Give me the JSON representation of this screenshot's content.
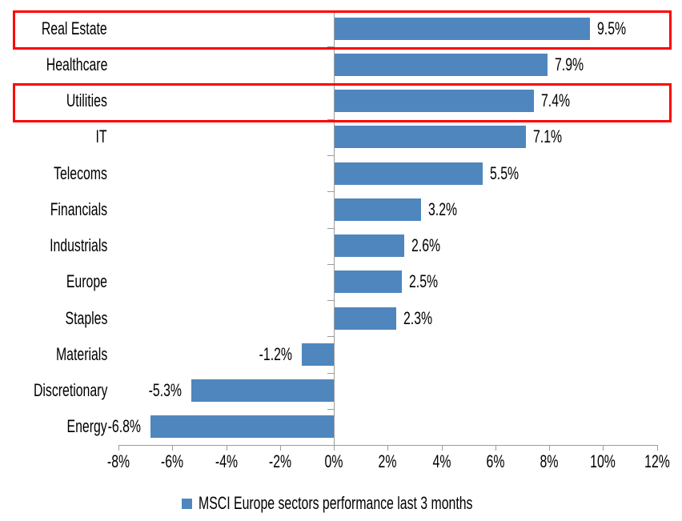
{
  "chart_data": {
    "type": "bar",
    "orientation": "horizontal",
    "title": "",
    "categories": [
      "Real Estate",
      "Healthcare",
      "Utilities",
      "IT",
      "Telecoms",
      "Financials",
      "Industrials",
      "Europe",
      "Staples",
      "Materials",
      "Discretionary",
      "Energy"
    ],
    "values": [
      9.5,
      7.9,
      7.4,
      7.1,
      5.5,
      3.2,
      2.6,
      2.5,
      2.3,
      -1.2,
      -5.3,
      -6.8
    ],
    "value_labels": [
      "9.5%",
      "7.9%",
      "7.4%",
      "7.1%",
      "5.5%",
      "3.2%",
      "2.6%",
      "2.5%",
      "2.3%",
      "-1.2%",
      "-5.3%",
      "-6.8%"
    ],
    "series_name": "MSCI Europe sectors performance last 3 months",
    "x_axis": {
      "range": [
        -8,
        12
      ],
      "ticks": [
        -8,
        -6,
        -4,
        -2,
        0,
        2,
        4,
        6,
        8,
        10,
        12
      ],
      "tick_labels": [
        "-8%",
        "-6%",
        "-4%",
        "-2%",
        "0%",
        "2%",
        "4%",
        "6%",
        "8%",
        "10%",
        "12%"
      ]
    },
    "grid": false,
    "legend_position": "bottom",
    "highlighted_categories": [
      "Real Estate",
      "Utilities"
    ],
    "highlight_indices": [
      0,
      2
    ],
    "colors": {
      "bar": "#4f86bd",
      "axis": "#9c9c9c",
      "highlight_box": "#ff0000",
      "text": "#000000"
    }
  },
  "legend": {
    "label": "MSCI Europe sectors performance last 3 months"
  }
}
